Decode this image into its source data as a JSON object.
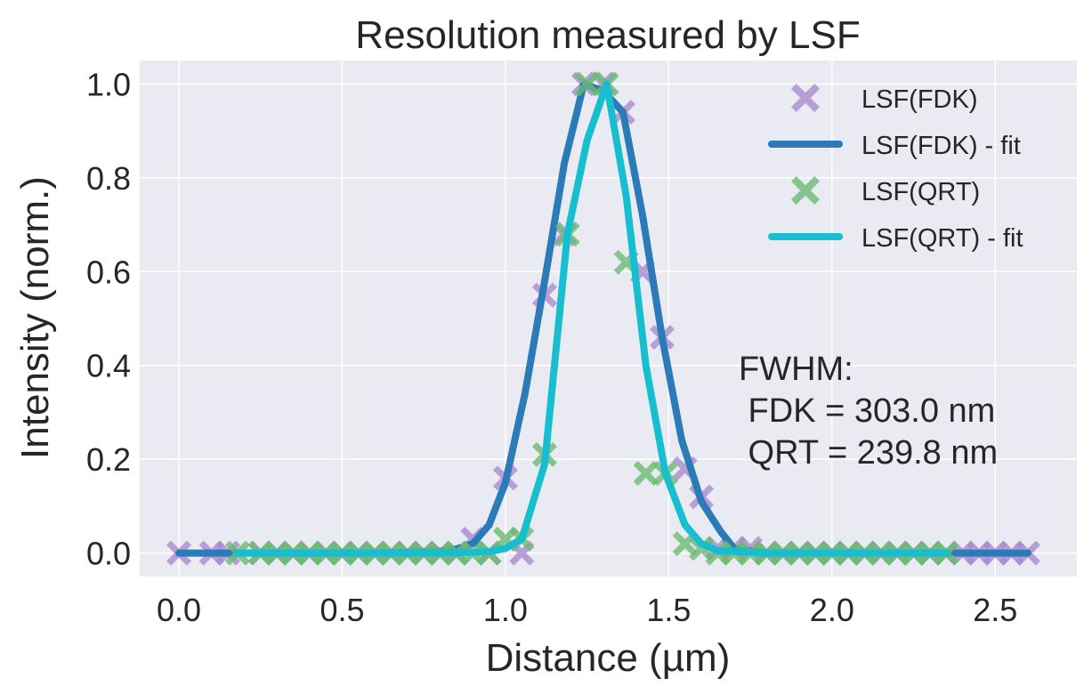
{
  "chart_data": {
    "type": "line",
    "title": "Resolution measured by LSF",
    "xlabel": "Distance (µm)",
    "ylabel": "Intensity (norm.)",
    "xlim": [
      -0.12,
      2.75
    ],
    "ylim": [
      -0.05,
      1.05
    ],
    "x_ticks": [
      0.0,
      0.5,
      1.0,
      1.5,
      2.0,
      2.5
    ],
    "x_tick_labels": [
      "0.0",
      "0.5",
      "1.0",
      "1.5",
      "2.0",
      "2.5"
    ],
    "y_ticks": [
      0.0,
      0.2,
      0.4,
      0.6,
      0.8,
      1.0
    ],
    "y_tick_labels": [
      "0.0",
      "0.2",
      "0.4",
      "0.6",
      "0.8",
      "1.0"
    ],
    "grid": true,
    "legend_position": "top-right",
    "series": [
      {
        "name": "LSF(FDK)",
        "kind": "scatter",
        "marker": "X",
        "color": "#a98bd0",
        "x": [
          0.0,
          0.1,
          0.15,
          0.25,
          0.3,
          0.35,
          0.4,
          0.45,
          0.5,
          0.55,
          0.6,
          0.65,
          0.7,
          0.75,
          0.8,
          0.85,
          0.9,
          0.95,
          1.0,
          1.05,
          1.12,
          1.18,
          1.24,
          1.3,
          1.36,
          1.42,
          1.48,
          1.55,
          1.6,
          1.65,
          1.7,
          1.75,
          1.8,
          1.85,
          1.9,
          1.95,
          2.0,
          2.05,
          2.1,
          2.15,
          2.2,
          2.25,
          2.3,
          2.35,
          2.4,
          2.45,
          2.5,
          2.55,
          2.6
        ],
        "y": [
          0.0,
          0.0,
          0.0,
          0.0,
          0.0,
          0.0,
          0.0,
          0.0,
          0.0,
          0.0,
          0.0,
          0.0,
          0.0,
          0.0,
          0.0,
          0.0,
          0.03,
          0.0,
          0.16,
          0.0,
          0.55,
          0.68,
          1.0,
          1.0,
          0.94,
          0.6,
          0.46,
          0.18,
          0.12,
          0.01,
          0.01,
          0.01,
          0.0,
          0.0,
          0.0,
          0.0,
          0.0,
          0.0,
          0.0,
          0.0,
          0.0,
          0.0,
          0.0,
          0.0,
          0.0,
          0.0,
          0.0,
          0.0,
          0.0
        ]
      },
      {
        "name": "LSF(FDK) - fit",
        "kind": "line",
        "color": "#2b7bb9",
        "x": [
          0.0,
          0.2,
          0.4,
          0.6,
          0.8,
          0.85,
          0.9,
          0.95,
          1.0,
          1.06,
          1.12,
          1.18,
          1.24,
          1.3,
          1.36,
          1.42,
          1.48,
          1.54,
          1.6,
          1.66,
          1.7,
          1.8,
          2.0,
          2.2,
          2.4,
          2.6
        ],
        "y": [
          0.0,
          0.0,
          0.0,
          0.0,
          0.004,
          0.009,
          0.02,
          0.06,
          0.15,
          0.34,
          0.58,
          0.83,
          1.0,
          0.985,
          0.94,
          0.72,
          0.46,
          0.24,
          0.11,
          0.045,
          0.01,
          0.0,
          0.0,
          0.0,
          0.0,
          0.0
        ]
      },
      {
        "name": "LSF(QRT)",
        "kind": "scatter",
        "marker": "X",
        "color": "#6cba72",
        "x": [
          0.18,
          0.25,
          0.3,
          0.35,
          0.4,
          0.45,
          0.5,
          0.55,
          0.6,
          0.65,
          0.7,
          0.75,
          0.8,
          0.85,
          0.9,
          0.95,
          1.0,
          1.05,
          1.12,
          1.19,
          1.25,
          1.31,
          1.37,
          1.43,
          1.49,
          1.55,
          1.6,
          1.65,
          1.7,
          1.75,
          1.8,
          1.85,
          1.9,
          1.95,
          2.0,
          2.05,
          2.1,
          2.15,
          2.2,
          2.25,
          2.3,
          2.35
        ],
        "y": [
          0.0,
          0.0,
          0.0,
          0.0,
          0.0,
          0.0,
          0.0,
          0.0,
          0.0,
          0.0,
          0.0,
          0.0,
          0.0,
          0.0,
          0.0,
          0.0,
          0.03,
          0.03,
          0.21,
          0.68,
          1.0,
          1.0,
          0.62,
          0.17,
          0.17,
          0.02,
          0.01,
          0.0,
          0.0,
          0.0,
          0.0,
          0.0,
          0.0,
          0.0,
          0.0,
          0.0,
          0.0,
          0.0,
          0.0,
          0.0,
          0.0,
          0.0
        ]
      },
      {
        "name": "LSF(QRT) - fit",
        "kind": "line",
        "color": "#17becf",
        "x": [
          0.18,
          0.4,
          0.6,
          0.8,
          0.95,
          1.0,
          1.05,
          1.12,
          1.19,
          1.25,
          1.31,
          1.37,
          1.43,
          1.49,
          1.55,
          1.6,
          1.65,
          1.8,
          2.0,
          2.2,
          2.35
        ],
        "y": [
          0.0,
          0.0,
          0.0,
          0.0,
          0.003,
          0.01,
          0.03,
          0.19,
          0.68,
          0.88,
          1.0,
          0.76,
          0.4,
          0.17,
          0.06,
          0.02,
          0.005,
          0.0,
          0.0,
          0.0,
          0.0
        ]
      }
    ],
    "annotation": {
      "lines": [
        "FWHM:",
        " FDK = 303.0 nm",
        " QRT = 239.8 nm"
      ]
    }
  }
}
